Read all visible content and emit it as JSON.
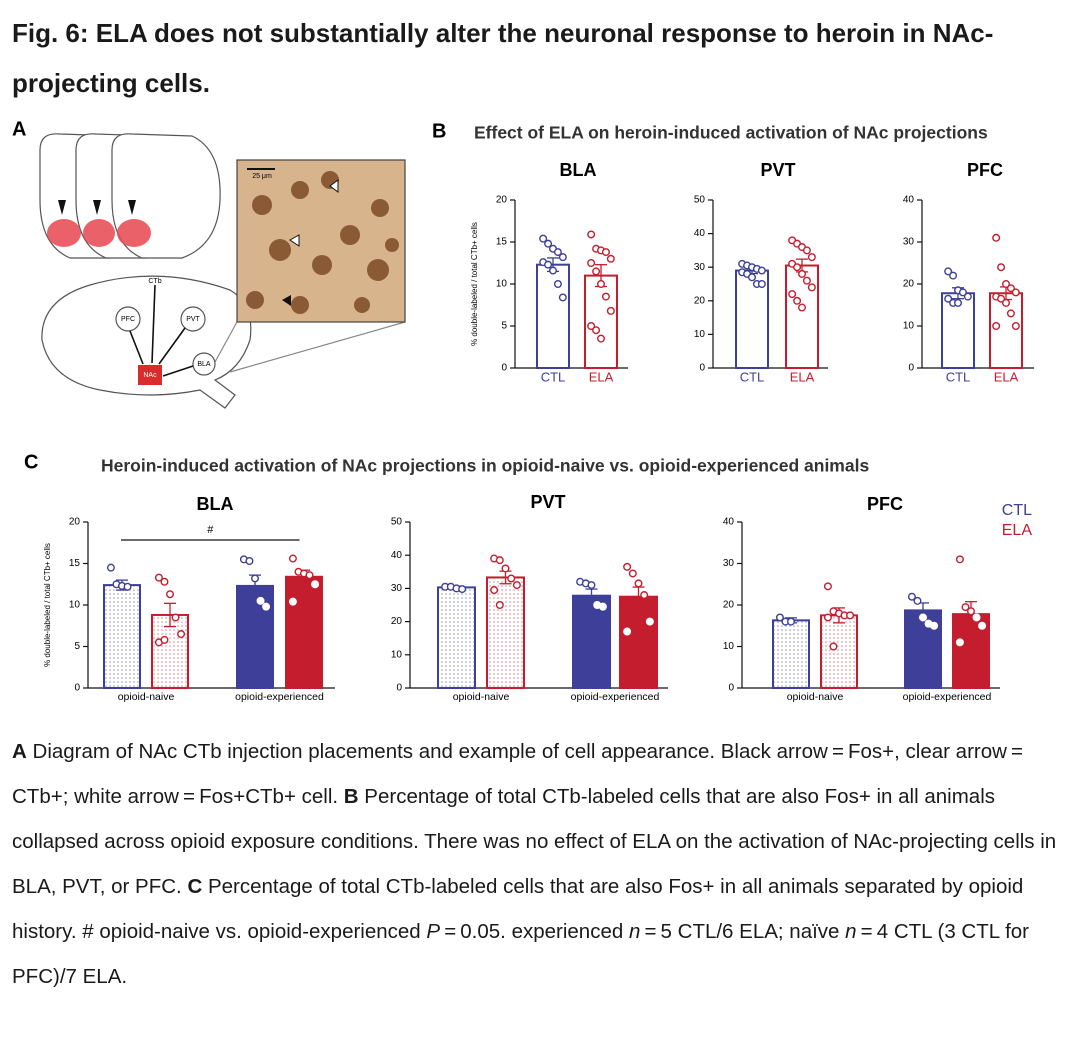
{
  "header": {
    "title": "Fig. 6: ELA does not substantially alter the neuronal response to heroin in NAc-projecting cells."
  },
  "panel_a": {
    "label": "A",
    "labels": {
      "ctb": "CTb",
      "pfc": "PFC",
      "pvt": "PVT",
      "bla": "BLA",
      "nac": "NAc",
      "scale_bar": "25 μm"
    }
  },
  "panels": [
    {
      "label": "B",
      "title": "Effect of ELA on heroin-induced activation of NAc projections"
    },
    {
      "label": "C",
      "title": "Heroin-induced activation of NAc projections in opioid-naive vs. opioid-experienced animals"
    }
  ],
  "chart_data": [
    {
      "type": "bar",
      "title": "BLA",
      "ylabel": "% double-labeled / total CTb+ cells",
      "categories": [
        "CTL",
        "ELA"
      ],
      "colors": [
        "#3d3f98",
        "#c41e2e"
      ],
      "values": [
        12.3,
        11.0
      ],
      "errors": [
        0.8,
        1.3
      ],
      "points": [
        [
          15.4,
          14.8,
          14.2,
          13.8,
          13.2,
          12.6,
          12.3,
          11.6,
          10.0,
          8.4
        ],
        [
          15.9,
          14.2,
          14.0,
          13.8,
          13.0,
          12.5,
          11.5,
          10.0,
          8.5,
          6.8,
          5.0,
          4.5,
          3.5
        ]
      ],
      "ylim": [
        0,
        20
      ],
      "yticks": [
        0,
        5,
        10,
        15,
        20
      ]
    },
    {
      "type": "bar",
      "title": "PVT",
      "categories": [
        "CTL",
        "ELA"
      ],
      "colors": [
        "#3d3f98",
        "#c41e2e"
      ],
      "values": [
        29.0,
        30.5
      ],
      "errors": [
        0.9,
        1.9
      ],
      "points": [
        [
          31,
          30.5,
          30,
          29.5,
          29,
          28.5,
          28,
          27,
          25,
          25
        ],
        [
          38,
          37,
          36,
          35,
          33,
          31,
          30,
          28,
          26,
          24,
          22,
          20,
          18
        ]
      ],
      "ylim": [
        0,
        50
      ],
      "yticks": [
        0,
        10,
        20,
        30,
        40,
        50
      ]
    },
    {
      "type": "bar",
      "title": "PFC",
      "categories": [
        "CTL",
        "ELA"
      ],
      "colors": [
        "#3d3f98",
        "#c41e2e"
      ],
      "values": [
        17.8,
        17.8
      ],
      "errors": [
        1.3,
        1.5
      ],
      "points": [
        [
          23,
          22,
          18.5,
          18,
          17,
          16.5,
          15.5,
          15.5
        ],
        [
          31,
          24,
          20,
          19,
          18,
          17,
          16.5,
          15.5,
          13,
          10,
          10
        ]
      ],
      "ylim": [
        0,
        40
      ],
      "yticks": [
        0,
        10,
        20,
        30,
        40
      ]
    },
    {
      "type": "grouped_bar",
      "title": "BLA",
      "ylabel": "% double-labeled / total CTb+ cells",
      "annotation": "#",
      "categories": [
        "opioid-naive",
        "opioid-experienced"
      ],
      "patterns": [
        "dotted",
        "solid"
      ],
      "series": [
        {
          "name": "CTL",
          "color": "#3d3f98",
          "values": [
            12.4,
            12.3
          ],
          "errors": [
            0.6,
            1.3
          ],
          "points": [
            [
              14.5,
              12.5,
              12.3,
              12.2
            ],
            [
              15.5,
              15.3,
              13.2,
              10.5,
              9.8
            ]
          ]
        },
        {
          "name": "ELA",
          "color": "#c41e2e",
          "values": [
            8.8,
            13.4
          ],
          "errors": [
            1.4,
            0.8
          ],
          "points": [
            [
              13.3,
              12.8,
              11.3,
              8.5,
              6.5,
              5.5,
              5.8
            ],
            [
              15.6,
              14.0,
              13.8,
              13.6,
              12.5,
              10.4
            ]
          ]
        }
      ],
      "ylim": [
        0,
        20
      ],
      "yticks": [
        0,
        5,
        10,
        15,
        20
      ]
    },
    {
      "type": "grouped_bar",
      "title": "PVT",
      "categories": [
        "opioid-naive",
        "opioid-experienced"
      ],
      "patterns": [
        "dotted",
        "solid"
      ],
      "series": [
        {
          "name": "CTL",
          "color": "#3d3f98",
          "values": [
            30.3,
            27.8
          ],
          "errors": [
            0.4,
            2.0
          ],
          "points": [
            [
              30.5,
              30.5,
              30,
              29.8
            ],
            [
              32,
              31.5,
              31,
              25,
              24.5
            ]
          ]
        },
        {
          "name": "ELA",
          "color": "#c41e2e",
          "values": [
            33.3,
            27.5
          ],
          "errors": [
            1.9,
            2.9
          ],
          "points": [
            [
              39,
              38.5,
              36,
              33,
              31,
              29.5,
              25
            ],
            [
              36.5,
              34.5,
              31.5,
              28,
              20,
              17
            ]
          ]
        }
      ],
      "ylim": [
        0,
        50
      ],
      "yticks": [
        0,
        10,
        20,
        30,
        40,
        50
      ]
    },
    {
      "type": "grouped_bar",
      "title": "PFC",
      "legend": "upper right",
      "categories": [
        "opioid-naive",
        "opioid-experienced"
      ],
      "patterns": [
        "dotted",
        "solid"
      ],
      "series": [
        {
          "name": "CTL",
          "color": "#3d3f98",
          "values": [
            16.3,
            18.7
          ],
          "errors": [
            0.6,
            1.8
          ],
          "points": [
            [
              17,
              16,
              16
            ],
            [
              22,
              21,
              17,
              15.5,
              15
            ]
          ]
        },
        {
          "name": "ELA",
          "color": "#c41e2e",
          "values": [
            17.5,
            17.8
          ],
          "errors": [
            1.8,
            3.0
          ],
          "points": [
            [
              24.5,
              18.5,
              18,
              17.5,
              17.5,
              17,
              10
            ],
            [
              31,
              19.5,
              18.5,
              17,
              15,
              11
            ]
          ]
        }
      ],
      "ylim": [
        0,
        40
      ],
      "yticks": [
        0,
        10,
        20,
        30,
        40
      ]
    }
  ],
  "caption": {
    "segments": [
      "A",
      " Diagram of NAc CTb injection placements and example of cell appearance. Black arrow = Fos+, clear arrow = CTb+; white arrow = Fos+CTb+ cell. ",
      "B",
      " Percentage of total CTb-labeled cells that are also Fos+ in all animals collapsed across opioid exposure conditions. There was no effect of ELA on the activation of NAc-projecting cells in BLA, PVT, or PFC. ",
      "C",
      " Percentage of total CTb-labeled cells that are also Fos+ in all animals separated by opioid history. # opioid-naive vs. opioid-experienced ",
      "P",
      " = 0.05. experienced ",
      "n",
      " = 5 CTL/6 ELA; naïve ",
      "n",
      " = 4 CTL (3 CTL for PFC)/7 ELA."
    ]
  }
}
